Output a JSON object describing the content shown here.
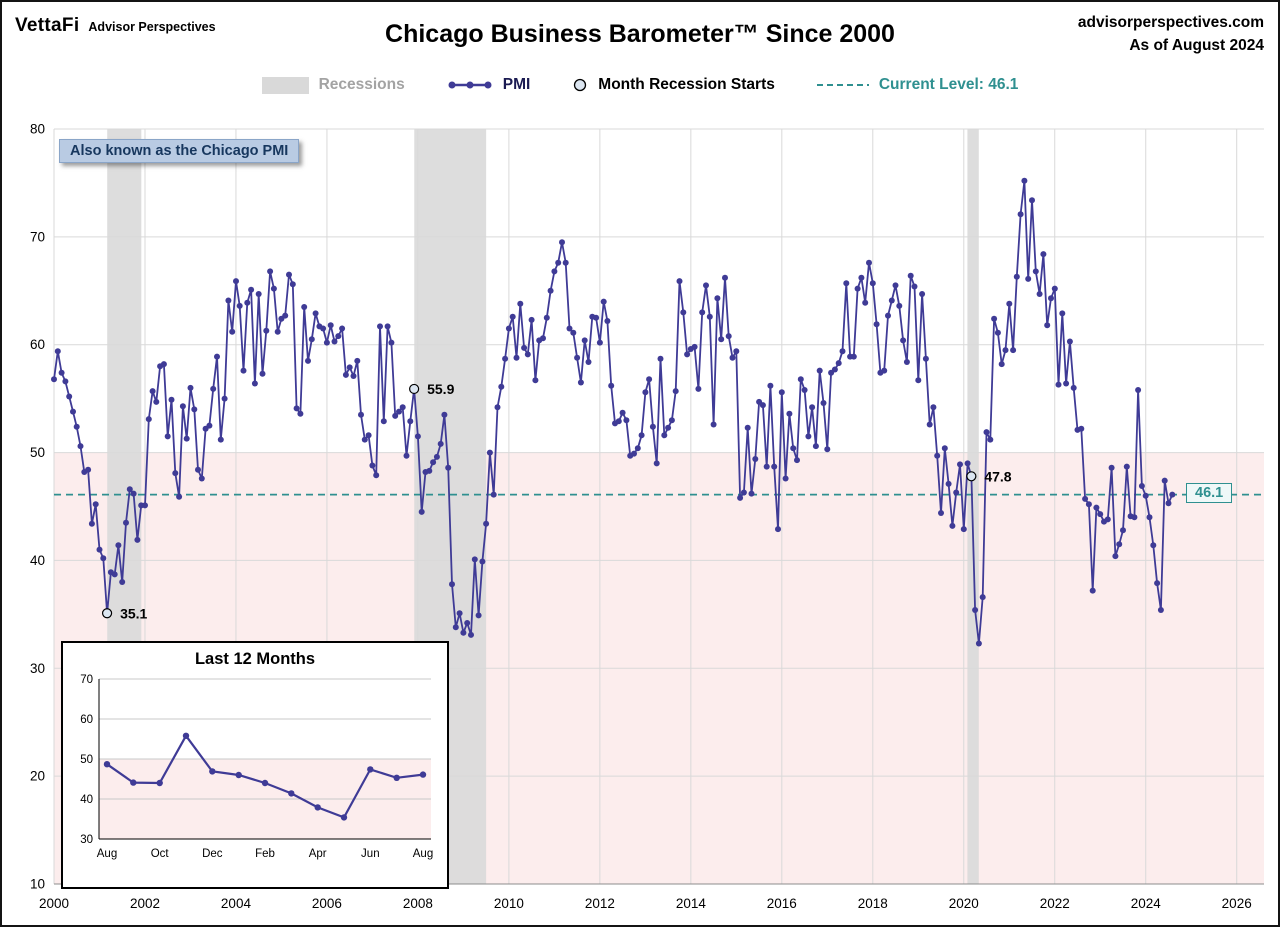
{
  "header": {
    "logo": "VettaFi",
    "logo_sub": "Advisor Perspectives",
    "site": "advisorperspectives.com",
    "as_of": "As of August 2024"
  },
  "legend": {
    "recessions": "Recessions",
    "pmi": "PMI",
    "recession_starts": "Month Recession Starts",
    "current_level": "Current Level: 46.1"
  },
  "annotations": {
    "note": "Also known as the Chicago PMI",
    "current_level_label": "46.1",
    "callouts": [
      {
        "label": "35.1",
        "month_index": 14,
        "value": 35.1
      },
      {
        "label": "55.9",
        "month_index": 95,
        "value": 55.9
      },
      {
        "label": "47.8",
        "month_index": 242,
        "value": 47.8
      }
    ]
  },
  "colors": {
    "line": "#3f3b96",
    "teal": "#2f9090",
    "below_50_fill": "#fceded",
    "recession_fill": "#d9d9d9",
    "grid": "#d9d9d9",
    "marker_start_fill": "#dce6f1"
  },
  "chart_data": [
    {
      "type": "line",
      "title": "Chicago Business Barometer™ Since 2000",
      "xlim": [
        2000,
        2026.6
      ],
      "ylim": [
        10,
        80
      ],
      "x_ticks": [
        2000,
        2002,
        2004,
        2006,
        2008,
        2010,
        2012,
        2014,
        2016,
        2018,
        2020,
        2022,
        2024,
        2026
      ],
      "y_ticks": [
        10,
        20,
        30,
        40,
        50,
        60,
        70,
        80
      ],
      "grid": true,
      "legend_position": "top",
      "shade_below": 50,
      "current_level": 46.1,
      "recessions": [
        [
          2001.17,
          2001.92
        ],
        [
          2007.92,
          2009.5
        ],
        [
          2020.08,
          2020.33
        ]
      ],
      "series": [
        {
          "name": "PMI",
          "start_year": 2000,
          "frequency": "monthly",
          "values": [
            56.8,
            59.4,
            57.4,
            56.6,
            55.2,
            53.8,
            52.4,
            50.6,
            48.2,
            48.4,
            43.4,
            45.2,
            41.0,
            40.2,
            35.1,
            38.9,
            38.7,
            41.4,
            38.0,
            43.5,
            46.6,
            46.2,
            41.9,
            45.1,
            45.1,
            53.1,
            55.7,
            54.7,
            58.0,
            58.2,
            51.5,
            54.9,
            48.1,
            45.9,
            54.3,
            51.3,
            56.0,
            54.0,
            48.4,
            47.6,
            52.2,
            52.5,
            55.9,
            58.9,
            51.2,
            55.0,
            64.1,
            61.2,
            65.9,
            63.6,
            57.6,
            63.9,
            65.1,
            56.4,
            64.7,
            57.3,
            61.3,
            66.8,
            65.2,
            61.2,
            62.4,
            62.7,
            66.5,
            65.6,
            54.1,
            53.6,
            63.5,
            58.5,
            60.5,
            62.9,
            61.7,
            61.5,
            60.2,
            61.8,
            60.3,
            60.8,
            61.5,
            57.2,
            57.9,
            57.1,
            58.5,
            53.5,
            51.2,
            51.6,
            48.8,
            47.9,
            61.7,
            52.9,
            61.7,
            60.2,
            53.4,
            53.8,
            54.2,
            49.7,
            52.9,
            55.9,
            51.5,
            44.5,
            48.2,
            48.3,
            49.1,
            49.6,
            50.8,
            53.5,
            48.6,
            37.8,
            33.8,
            35.1,
            33.3,
            34.2,
            33.1,
            40.1,
            34.9,
            39.9,
            43.4,
            50.0,
            46.1,
            54.2,
            56.1,
            58.7,
            61.5,
            62.6,
            58.8,
            63.8,
            59.7,
            59.1,
            62.3,
            56.7,
            60.4,
            60.6,
            62.5,
            65.0,
            66.8,
            67.6,
            69.5,
            67.6,
            61.5,
            61.1,
            58.8,
            56.5,
            60.4,
            58.4,
            62.6,
            62.5,
            60.2,
            64.0,
            62.2,
            56.2,
            52.7,
            52.9,
            53.7,
            53.0,
            49.7,
            49.9,
            50.4,
            51.6,
            55.6,
            56.8,
            52.4,
            49.0,
            58.7,
            51.6,
            52.3,
            53.0,
            55.7,
            65.9,
            63.0,
            59.1,
            59.6,
            59.8,
            55.9,
            63.0,
            65.5,
            62.6,
            52.6,
            64.3,
            60.5,
            66.2,
            60.8,
            58.8,
            59.4,
            45.8,
            46.3,
            52.3,
            46.2,
            49.4,
            54.7,
            54.4,
            48.7,
            56.2,
            48.7,
            42.9,
            55.6,
            47.6,
            53.6,
            50.4,
            49.3,
            56.8,
            55.8,
            51.5,
            54.2,
            50.6,
            57.6,
            54.6,
            50.3,
            57.4,
            57.7,
            58.3,
            59.4,
            65.7,
            58.9,
            58.9,
            65.2,
            66.2,
            63.9,
            67.6,
            65.7,
            61.9,
            57.4,
            57.6,
            62.7,
            64.1,
            65.5,
            63.6,
            60.4,
            58.4,
            66.4,
            65.4,
            56.7,
            64.7,
            58.7,
            52.6,
            54.2,
            49.7,
            44.4,
            50.4,
            47.1,
            43.2,
            46.3,
            48.9,
            42.9,
            49.0,
            47.8,
            35.4,
            32.3,
            36.6,
            51.9,
            51.2,
            62.4,
            61.1,
            58.2,
            59.5,
            63.8,
            59.5,
            66.3,
            72.1,
            75.2,
            66.1,
            73.4,
            66.8,
            64.7,
            68.4,
            61.8,
            64.3,
            65.2,
            56.3,
            62.9,
            56.4,
            60.3,
            56.0,
            52.1,
            52.2,
            45.7,
            45.2,
            37.2,
            44.9,
            44.3,
            43.6,
            43.8,
            48.6,
            40.4,
            41.5,
            42.8,
            48.7,
            44.1,
            44.0,
            55.8,
            46.9,
            46.0,
            44.0,
            41.4,
            37.9,
            35.4,
            47.4,
            45.3,
            46.1
          ]
        }
      ]
    },
    {
      "type": "line",
      "title": "Last 12 Months",
      "x_labels": [
        "Aug",
        "Oct",
        "Dec",
        "Feb",
        "Apr",
        "Jun",
        "Aug"
      ],
      "ylim": [
        30,
        70
      ],
      "y_ticks": [
        30,
        40,
        50,
        60,
        70
      ],
      "shade_below": 50,
      "values": [
        48.7,
        44.1,
        44.0,
        55.8,
        46.9,
        46.0,
        44.0,
        41.4,
        37.9,
        35.4,
        47.4,
        45.3,
        46.1
      ]
    }
  ]
}
